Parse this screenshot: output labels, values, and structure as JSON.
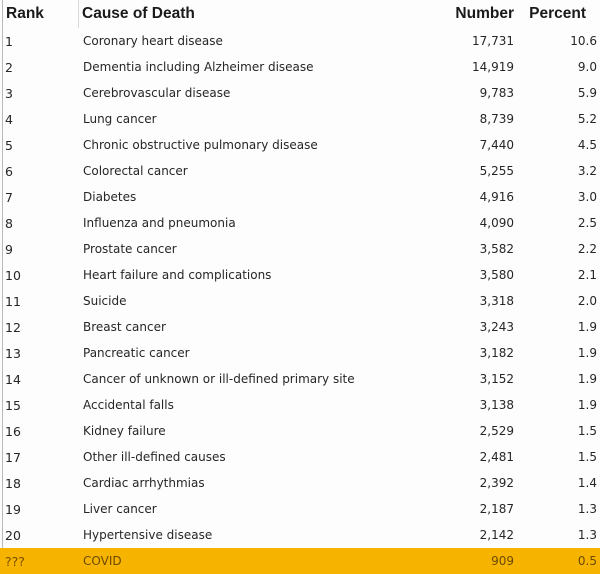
{
  "table": {
    "headers": {
      "rank": "Rank",
      "cause": "Cause of Death",
      "number": "Number",
      "percent": "Percent"
    },
    "rows": [
      {
        "rank": "1",
        "cause": "Coronary heart disease",
        "number": "17,731",
        "percent": "10.6"
      },
      {
        "rank": "2",
        "cause": "Dementia including Alzheimer disease",
        "number": "14,919",
        "percent": "9.0"
      },
      {
        "rank": "3",
        "cause": "Cerebrovascular disease",
        "number": "9,783",
        "percent": "5.9"
      },
      {
        "rank": "4",
        "cause": "Lung cancer",
        "number": "8,739",
        "percent": "5.2"
      },
      {
        "rank": "5",
        "cause": "Chronic obstructive pulmonary disease",
        "number": "7,440",
        "percent": "4.5"
      },
      {
        "rank": "6",
        "cause": "Colorectal cancer",
        "number": "5,255",
        "percent": "3.2"
      },
      {
        "rank": "7",
        "cause": "Diabetes",
        "number": "4,916",
        "percent": "3.0"
      },
      {
        "rank": "8",
        "cause": "Influenza and pneumonia",
        "number": "4,090",
        "percent": "2.5"
      },
      {
        "rank": "9",
        "cause": "Prostate cancer",
        "number": "3,582",
        "percent": "2.2"
      },
      {
        "rank": "10",
        "cause": "Heart failure and complications",
        "number": "3,580",
        "percent": "2.1"
      },
      {
        "rank": "11",
        "cause": "Suicide",
        "number": "3,318",
        "percent": "2.0"
      },
      {
        "rank": "12",
        "cause": "Breast cancer",
        "number": "3,243",
        "percent": "1.9"
      },
      {
        "rank": "13",
        "cause": "Pancreatic cancer",
        "number": "3,182",
        "percent": "1.9"
      },
      {
        "rank": "14",
        "cause": "Cancer of unknown or ill-defined primary site",
        "number": "3,152",
        "percent": "1.9"
      },
      {
        "rank": "15",
        "cause": "Accidental falls",
        "number": "3,138",
        "percent": "1.9"
      },
      {
        "rank": "16",
        "cause": "Kidney failure",
        "number": "2,529",
        "percent": "1.5"
      },
      {
        "rank": "17",
        "cause": "Other ill-defined causes",
        "number": "2,481",
        "percent": "1.5"
      },
      {
        "rank": "18",
        "cause": "Cardiac arrhythmias",
        "number": "2,392",
        "percent": "1.4"
      },
      {
        "rank": "19",
        "cause": "Liver cancer",
        "number": "2,187",
        "percent": "1.3"
      },
      {
        "rank": "20",
        "cause": "Hypertensive disease",
        "number": "2,142",
        "percent": "1.3"
      }
    ],
    "highlight_row": {
      "rank": "???",
      "cause": "COVID",
      "number": "909",
      "percent": "0.5"
    },
    "highlight_color": "#f6b400"
  }
}
